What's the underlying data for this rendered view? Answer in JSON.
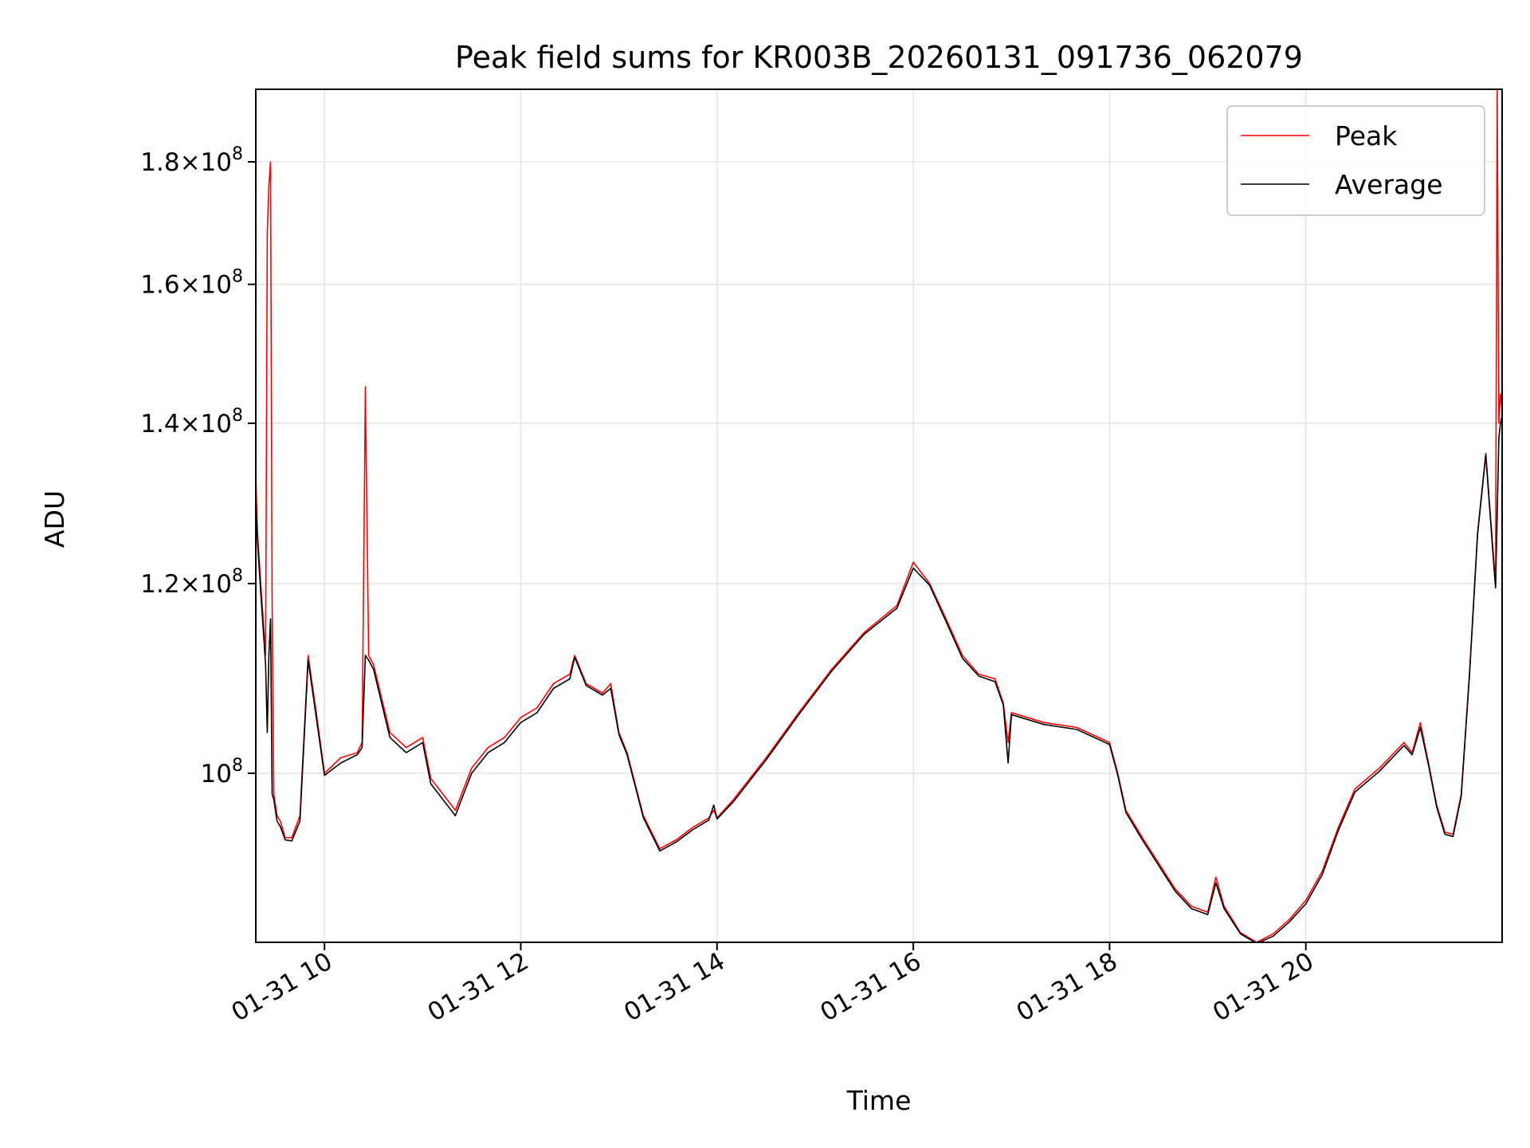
{
  "chart_data": {
    "type": "line",
    "title": "Peak field sums for KR003B_20260131_091736_062079",
    "xlabel": "Time",
    "ylabel": "ADU",
    "y_scale": "log",
    "xlim": [
      "2026-01-31 09:18",
      "2026-01-31 22:00"
    ],
    "ylim": [
      85000000,
      193000000
    ],
    "x_ticks": [
      "2026-01-31 10:00",
      "2026-01-31 12:00",
      "2026-01-31 14:00",
      "2026-01-31 16:00",
      "2026-01-31 18:00",
      "2026-01-31 20:00"
    ],
    "x_tick_labels": [
      "01-31 10",
      "01-31 12",
      "01-31 14",
      "01-31 16",
      "01-31 18",
      "01-31 20"
    ],
    "y_ticks": [
      100000000,
      120000000,
      140000000,
      160000000,
      180000000
    ],
    "y_tick_labels": [
      {
        "mantissa": "",
        "base": "10",
        "exp": "8"
      },
      {
        "mantissa": "1.2",
        "base": "10",
        "exp": "8"
      },
      {
        "mantissa": "1.4",
        "base": "10",
        "exp": "8"
      },
      {
        "mantissa": "1.6",
        "base": "10",
        "exp": "8"
      },
      {
        "mantissa": "1.8",
        "base": "10",
        "exp": "8"
      }
    ],
    "grid": true,
    "legend_position": "top-right",
    "legend": [
      "Peak",
      "Average"
    ],
    "colors": {
      "Peak": "#ff0000",
      "Average": "#000000",
      "grid": "#e6e6e6"
    },
    "series": [
      {
        "name": "Peak",
        "color": "#ff0000",
        "x": [
          "2026-01-31 09:18",
          "2026-01-31 09:19",
          "2026-01-31 09:21",
          "2026-01-31 09:24",
          "2026-01-31 09:25",
          "2026-01-31 09:26",
          "2026-01-31 09:27",
          "2026-01-31 09:28",
          "2026-01-31 09:29",
          "2026-01-31 09:30",
          "2026-01-31 09:31",
          "2026-01-31 09:33",
          "2026-01-31 09:36",
          "2026-01-31 09:40",
          "2026-01-31 09:45",
          "2026-01-31 09:50",
          "2026-01-31 09:55",
          "2026-01-31 10:00",
          "2026-01-31 10:10",
          "2026-01-31 10:20",
          "2026-01-31 10:23",
          "2026-01-31 10:25",
          "2026-01-31 10:27",
          "2026-01-31 10:30",
          "2026-01-31 10:40",
          "2026-01-31 10:50",
          "2026-01-31 11:00",
          "2026-01-31 11:05",
          "2026-01-31 11:15",
          "2026-01-31 11:20",
          "2026-01-31 11:25",
          "2026-01-31 11:30",
          "2026-01-31 11:40",
          "2026-01-31 11:50",
          "2026-01-31 12:00",
          "2026-01-31 12:10",
          "2026-01-31 12:20",
          "2026-01-31 12:30",
          "2026-01-31 12:33",
          "2026-01-31 12:40",
          "2026-01-31 12:50",
          "2026-01-31 12:55",
          "2026-01-31 13:00",
          "2026-01-31 13:05",
          "2026-01-31 13:15",
          "2026-01-31 13:25",
          "2026-01-31 13:35",
          "2026-01-31 13:45",
          "2026-01-31 13:55",
          "2026-01-31 13:58",
          "2026-01-31 14:00",
          "2026-01-31 14:10",
          "2026-01-31 14:30",
          "2026-01-31 14:50",
          "2026-01-31 15:10",
          "2026-01-31 15:30",
          "2026-01-31 15:50",
          "2026-01-31 16:00",
          "2026-01-31 16:10",
          "2026-01-31 16:20",
          "2026-01-31 16:30",
          "2026-01-31 16:40",
          "2026-01-31 16:50",
          "2026-01-31 16:55",
          "2026-01-31 16:58",
          "2026-01-31 17:00",
          "2026-01-31 17:20",
          "2026-01-31 17:40",
          "2026-01-31 18:00",
          "2026-01-31 18:05",
          "2026-01-31 18:10",
          "2026-01-31 18:20",
          "2026-01-31 18:40",
          "2026-01-31 18:50",
          "2026-01-31 19:00",
          "2026-01-31 19:05",
          "2026-01-31 19:10",
          "2026-01-31 19:20",
          "2026-01-31 19:30",
          "2026-01-31 19:40",
          "2026-01-31 19:50",
          "2026-01-31 20:00",
          "2026-01-31 20:10",
          "2026-01-31 20:20",
          "2026-01-31 20:30",
          "2026-01-31 20:45",
          "2026-01-31 21:00",
          "2026-01-31 21:05",
          "2026-01-31 21:10",
          "2026-01-31 21:15",
          "2026-01-31 21:20",
          "2026-01-31 21:25",
          "2026-01-31 21:30",
          "2026-01-31 21:35",
          "2026-01-31 21:40",
          "2026-01-31 21:45",
          "2026-01-31 21:50",
          "2026-01-31 21:55",
          "2026-01-31 21:56",
          "2026-01-31 21:57",
          "2026-01-31 21:58",
          "2026-01-31 21:59",
          "2026-01-31 22:00"
        ],
        "values": [
          133000000,
          126000000,
          120000000,
          112000000,
          168000000,
          176000000,
          180000000,
          118000000,
          98000000,
          97000000,
          96000000,
          95500000,
          94000000,
          94000000,
          96000000,
          112000000,
          106000000,
          100000000,
          101500000,
          102000000,
          103000000,
          145000000,
          112000000,
          111000000,
          104000000,
          102500000,
          103500000,
          99500000,
          97500000,
          96500000,
          98500000,
          100500000,
          102500000,
          103500000,
          105500000,
          106500000,
          109000000,
          110000000,
          112000000,
          109000000,
          108000000,
          109000000,
          104000000,
          102000000,
          96000000,
          93000000,
          93800000,
          94900000,
          95800000,
          96500000,
          95800000,
          97500000,
          101500000,
          106000000,
          110500000,
          114500000,
          117500000,
          122500000,
          120000000,
          116000000,
          112000000,
          110000000,
          109500000,
          107000000,
          103000000,
          106000000,
          105000000,
          104500000,
          103000000,
          100000000,
          96500000,
          94000000,
          89500000,
          88000000,
          87500000,
          90500000,
          88000000,
          85800000,
          85000000,
          85700000,
          86900000,
          88500000,
          91000000,
          95000000,
          98500000,
          100500000,
          103000000,
          102000000,
          105000000,
          101000000,
          97000000,
          94500000,
          94300000,
          98000000,
          110000000,
          126000000,
          136000000,
          122500000,
          120000000,
          193000000,
          140000000,
          144000000,
          142000000
        ]
      },
      {
        "name": "Average",
        "color": "#000000",
        "x": [
          "2026-01-31 09:18",
          "2026-01-31 09:19",
          "2026-01-31 09:21",
          "2026-01-31 09:24",
          "2026-01-31 09:25",
          "2026-01-31 09:26",
          "2026-01-31 09:27",
          "2026-01-31 09:28",
          "2026-01-31 09:29",
          "2026-01-31 09:30",
          "2026-01-31 09:31",
          "2026-01-31 09:33",
          "2026-01-31 09:36",
          "2026-01-31 09:40",
          "2026-01-31 09:45",
          "2026-01-31 09:50",
          "2026-01-31 09:55",
          "2026-01-31 10:00",
          "2026-01-31 10:10",
          "2026-01-31 10:20",
          "2026-01-31 10:23",
          "2026-01-31 10:25",
          "2026-01-31 10:27",
          "2026-01-31 10:30",
          "2026-01-31 10:40",
          "2026-01-31 10:50",
          "2026-01-31 11:00",
          "2026-01-31 11:05",
          "2026-01-31 11:15",
          "2026-01-31 11:20",
          "2026-01-31 11:25",
          "2026-01-31 11:30",
          "2026-01-31 11:40",
          "2026-01-31 11:50",
          "2026-01-31 12:00",
          "2026-01-31 12:10",
          "2026-01-31 12:20",
          "2026-01-31 12:30",
          "2026-01-31 12:33",
          "2026-01-31 12:40",
          "2026-01-31 12:50",
          "2026-01-31 12:55",
          "2026-01-31 13:00",
          "2026-01-31 13:05",
          "2026-01-31 13:15",
          "2026-01-31 13:25",
          "2026-01-31 13:35",
          "2026-01-31 13:45",
          "2026-01-31 13:55",
          "2026-01-31 13:58",
          "2026-01-31 14:00",
          "2026-01-31 14:10",
          "2026-01-31 14:30",
          "2026-01-31 14:50",
          "2026-01-31 15:10",
          "2026-01-31 15:30",
          "2026-01-31 15:50",
          "2026-01-31 16:00",
          "2026-01-31 16:10",
          "2026-01-31 16:20",
          "2026-01-31 16:30",
          "2026-01-31 16:40",
          "2026-01-31 16:50",
          "2026-01-31 16:55",
          "2026-01-31 16:58",
          "2026-01-31 17:00",
          "2026-01-31 17:20",
          "2026-01-31 17:40",
          "2026-01-31 18:00",
          "2026-01-31 18:05",
          "2026-01-31 18:10",
          "2026-01-31 18:20",
          "2026-01-31 18:40",
          "2026-01-31 18:50",
          "2026-01-31 19:00",
          "2026-01-31 19:05",
          "2026-01-31 19:10",
          "2026-01-31 19:20",
          "2026-01-31 19:30",
          "2026-01-31 19:40",
          "2026-01-31 19:50",
          "2026-01-31 20:00",
          "2026-01-31 20:10",
          "2026-01-31 20:20",
          "2026-01-31 20:30",
          "2026-01-31 20:45",
          "2026-01-31 21:00",
          "2026-01-31 21:05",
          "2026-01-31 21:10",
          "2026-01-31 21:15",
          "2026-01-31 21:20",
          "2026-01-31 21:25",
          "2026-01-31 21:30",
          "2026-01-31 21:35",
          "2026-01-31 21:40",
          "2026-01-31 21:45",
          "2026-01-31 21:50",
          "2026-01-31 21:55",
          "2026-01-31 21:56",
          "2026-01-31 21:57",
          "2026-01-31 21:58",
          "2026-01-31 21:59",
          "2026-01-31 22:00"
        ],
        "values": [
          130000000,
          125000000,
          119000000,
          111000000,
          104000000,
          112000000,
          116000000,
          98000000,
          97500000,
          96500000,
          95500000,
          95000000,
          93800000,
          93700000,
          95500000,
          111500000,
          105500000,
          99800000,
          101000000,
          101800000,
          102500000,
          112000000,
          111500000,
          110500000,
          103500000,
          102000000,
          103000000,
          99000000,
          97000000,
          96000000,
          98000000,
          100000000,
          102000000,
          103000000,
          105000000,
          106000000,
          108500000,
          109500000,
          111800000,
          108800000,
          107800000,
          108500000,
          103800000,
          101800000,
          95800000,
          92800000,
          93600000,
          94700000,
          95600000,
          97000000,
          95700000,
          97300000,
          101300000,
          105800000,
          110300000,
          114300000,
          117200000,
          121800000,
          119800000,
          115700000,
          111700000,
          109800000,
          109200000,
          106800000,
          101000000,
          105800000,
          104800000,
          104300000,
          102800000,
          99800000,
          96300000,
          93800000,
          89300000,
          87800000,
          87300000,
          90000000,
          87800000,
          85700000,
          84900000,
          85500000,
          86700000,
          88200000,
          90700000,
          94700000,
          98200000,
          100200000,
          102700000,
          101800000,
          104500000,
          100800000,
          96800000,
          94300000,
          94100000,
          97800000,
          109800000,
          125800000,
          135800000,
          122000000,
          119500000,
          128000000,
          138000000,
          140000000,
          141000000
        ]
      }
    ]
  }
}
